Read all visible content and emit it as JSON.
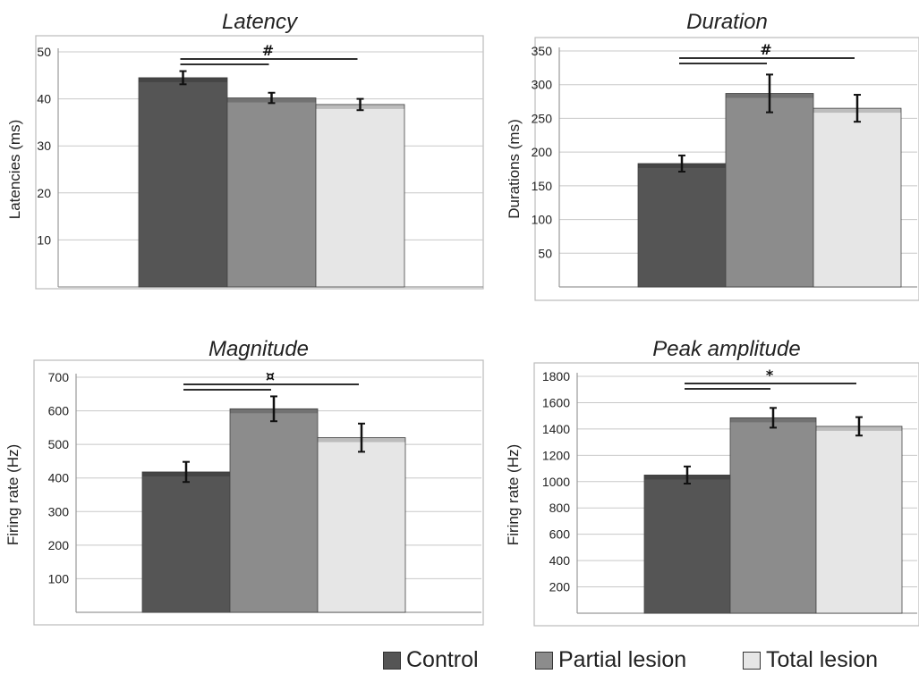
{
  "chart_data": [
    {
      "type": "bar",
      "title": "Latency",
      "ylabel": "Latencies (ms)",
      "ylim": [
        0,
        50
      ],
      "yticks": [
        10,
        20,
        30,
        40,
        50
      ],
      "categories": [
        "Control",
        "Partial lesion",
        "Total lesion"
      ],
      "values": [
        44.5,
        40.2,
        38.8
      ],
      "errors": [
        1.4,
        1.1,
        1.2
      ],
      "significance": [
        {
          "from": 0,
          "to": 1,
          "label": ""
        },
        {
          "from": 0,
          "to": 2,
          "label": "#"
        }
      ],
      "grid": true
    },
    {
      "type": "bar",
      "title": "Duration",
      "ylabel": "Durations (ms)",
      "ylim": [
        0,
        350
      ],
      "yticks": [
        50,
        100,
        150,
        200,
        250,
        300,
        350
      ],
      "categories": [
        "Control",
        "Partial lesion",
        "Total lesion"
      ],
      "values": [
        183,
        287,
        265
      ],
      "errors": [
        12,
        28,
        20
      ],
      "significance": [
        {
          "from": 0,
          "to": 1,
          "label": ""
        },
        {
          "from": 0,
          "to": 2,
          "label": "#"
        }
      ],
      "grid": true
    },
    {
      "type": "bar",
      "title": "Magnitude",
      "ylabel": "Firing rate (Hz)",
      "ylim": [
        0,
        700
      ],
      "yticks": [
        100,
        200,
        300,
        400,
        500,
        600,
        700
      ],
      "categories": [
        "Control",
        "Partial lesion",
        "Total lesion"
      ],
      "values": [
        418,
        606,
        520
      ],
      "errors": [
        30,
        37,
        42
      ],
      "significance": [
        {
          "from": 0,
          "to": 1,
          "label": ""
        },
        {
          "from": 0,
          "to": 2,
          "label": "¤"
        }
      ],
      "grid": true
    },
    {
      "type": "bar",
      "title": "Peak amplitude",
      "ylabel": "Firing rate (Hz)",
      "ylim": [
        0,
        1800
      ],
      "yticks": [
        200,
        400,
        600,
        800,
        1000,
        1200,
        1400,
        1600,
        1800
      ],
      "categories": [
        "Control",
        "Partial lesion",
        "Total lesion"
      ],
      "values": [
        1050,
        1485,
        1420
      ],
      "errors": [
        65,
        75,
        70
      ],
      "significance": [
        {
          "from": 0,
          "to": 1,
          "label": ""
        },
        {
          "from": 0,
          "to": 2,
          "label": "*"
        }
      ],
      "grid": true
    }
  ],
  "legend": {
    "placement": "bottom-right",
    "items": [
      {
        "label": "Control",
        "color": "#555555"
      },
      {
        "label": "Partial lesion",
        "color": "#8c8c8c"
      },
      {
        "label": "Total lesion",
        "color": "#e6e6e6"
      }
    ]
  },
  "colors": {
    "control": "#555555",
    "partial": "#8c8c8c",
    "total": "#e6e6e6",
    "grid": "#c8c8c8",
    "frame": "#bbbbbb",
    "ink": "#222222"
  }
}
